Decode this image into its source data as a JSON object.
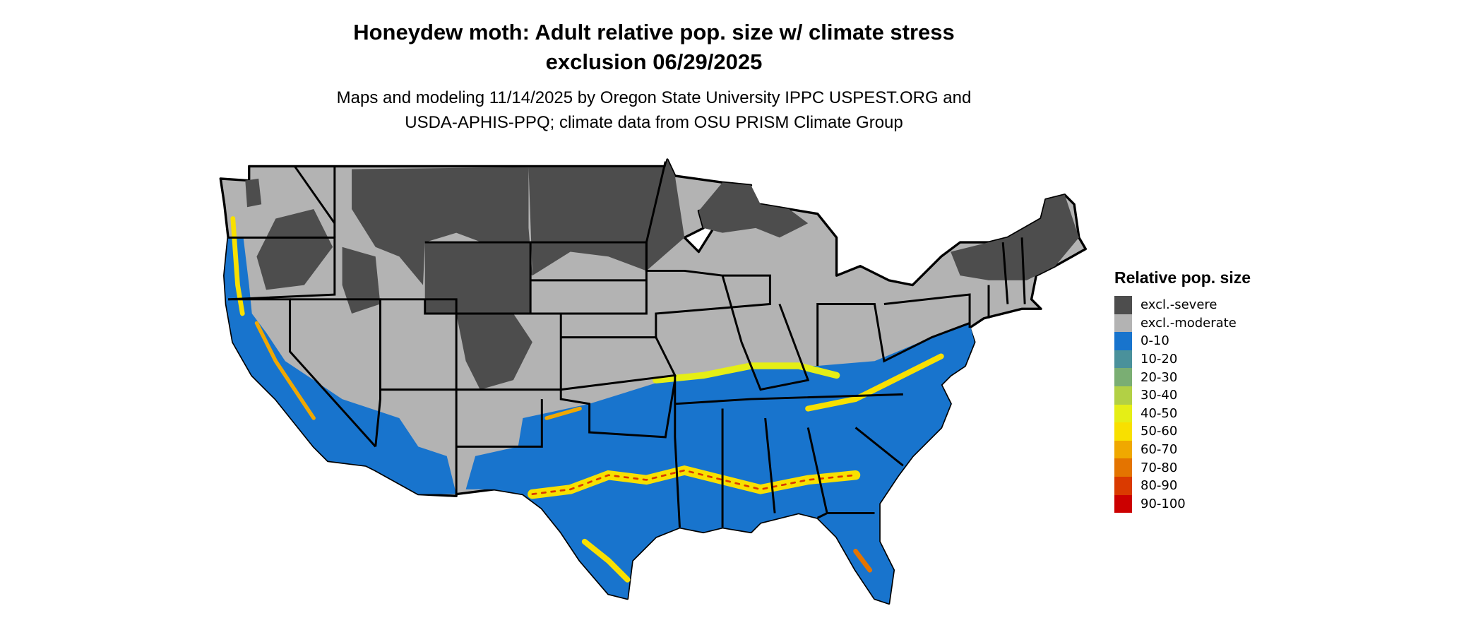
{
  "title": {
    "line1": "Honeydew moth: Adult relative pop. size w/ climate stress",
    "line2": "exclusion 06/29/2025"
  },
  "subtitle": {
    "line1": "Maps and modeling 11/14/2025 by Oregon State University IPPC USPEST.ORG and",
    "line2": "USDA-APHIS-PPQ; climate data from OSU PRISM Climate Group"
  },
  "legend": {
    "title": "Relative pop. size",
    "items": [
      {
        "label": "excl.-severe",
        "color": "#4d4d4d"
      },
      {
        "label": "excl.-moderate",
        "color": "#b3b3b3"
      },
      {
        "label": "0-10",
        "color": "#1874cd"
      },
      {
        "label": "10-20",
        "color": "#4a919b"
      },
      {
        "label": "20-30",
        "color": "#7aae73"
      },
      {
        "label": "30-40",
        "color": "#b2d045"
      },
      {
        "label": "40-50",
        "color": "#e5ee16"
      },
      {
        "label": "50-60",
        "color": "#f8e000"
      },
      {
        "label": "60-70",
        "color": "#f0a800"
      },
      {
        "label": "70-80",
        "color": "#e47400"
      },
      {
        "label": "80-90",
        "color": "#da3a00"
      },
      {
        "label": "90-100",
        "color": "#cc0000"
      }
    ]
  }
}
